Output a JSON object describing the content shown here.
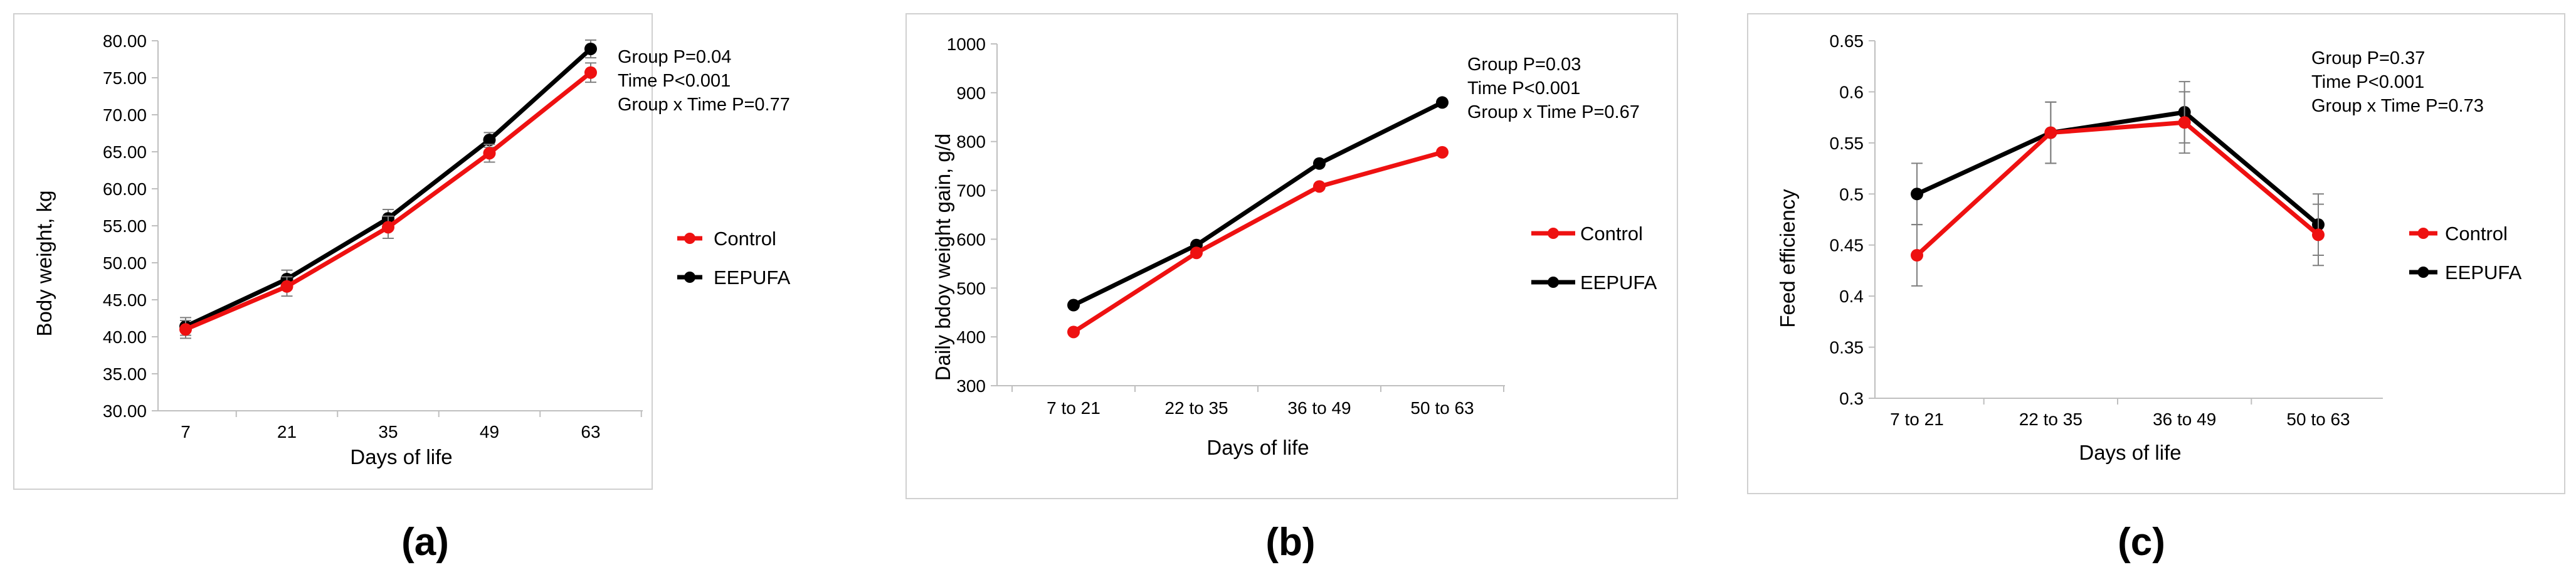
{
  "figure": {
    "panel_captions": [
      "(a)",
      "(b)",
      "(c)"
    ]
  },
  "colors": {
    "control": "#ee1111",
    "eepufa": "#000000",
    "axis": "#bfbfbf",
    "frame": "#d0d0d0",
    "error": "#7f7f7f"
  },
  "chart_data": [
    {
      "panel": "a",
      "type": "line",
      "caption": "(a)",
      "xlabel": "Days of life",
      "ylabel": "Body weight, kg",
      "categories": [
        "7",
        "21",
        "35",
        "49",
        "63"
      ],
      "ylim": [
        30.0,
        80.0
      ],
      "yticks": [
        "30.00",
        "35.00",
        "40.00",
        "45.00",
        "50.00",
        "55.00",
        "60.00",
        "65.00",
        "70.00",
        "75.00",
        "80.00"
      ],
      "ytick_values": [
        30,
        35,
        40,
        45,
        50,
        55,
        60,
        65,
        70,
        75,
        80
      ],
      "series": [
        {
          "name": "Control",
          "values": [
            41.0,
            46.8,
            54.8,
            64.8,
            75.7
          ],
          "errors": [
            1.2,
            1.3,
            1.5,
            1.2,
            1.3
          ]
        },
        {
          "name": "EEPUFA",
          "values": [
            41.4,
            47.8,
            56.0,
            66.6,
            78.9
          ],
          "errors": [
            1.2,
            1.2,
            1.2,
            1.0,
            1.2
          ]
        }
      ],
      "stats": [
        "Group P=0.04",
        "Time P<0.001",
        "Group x Time P=0.77"
      ],
      "error_bars": true
    },
    {
      "panel": "b",
      "type": "line",
      "caption": "(b)",
      "xlabel": "Days of life",
      "ylabel": "Daily bdoy weight gain, g/d",
      "categories": [
        "7 to 21",
        "22 to 35",
        "36 to 49",
        "50 to 63"
      ],
      "ylim": [
        300,
        1000
      ],
      "yticks": [
        "300",
        "400",
        "500",
        "600",
        "700",
        "800",
        "900",
        "1000"
      ],
      "ytick_values": [
        300,
        400,
        500,
        600,
        700,
        800,
        900,
        1000
      ],
      "series": [
        {
          "name": "Control",
          "values": [
            410,
            572,
            708,
            778
          ],
          "errors": [
            10,
            10,
            10,
            10
          ]
        },
        {
          "name": "EEPUFA",
          "values": [
            465,
            588,
            755,
            880
          ],
          "errors": [
            10,
            10,
            10,
            10
          ]
        }
      ],
      "stats": [
        "Group P=0.03",
        "Time P<0.001",
        "Group x Time P=0.67"
      ],
      "error_bars": false
    },
    {
      "panel": "c",
      "type": "line",
      "caption": "(c)",
      "xlabel": "Days of life",
      "ylabel": "Feed efficiency",
      "categories": [
        "7 to 21",
        "22 to 35",
        "36 to 49",
        "50 to 63"
      ],
      "ylim": [
        0.3,
        0.65
      ],
      "yticks": [
        "0.3",
        "0.35",
        "0.4",
        "0.45",
        "0.5",
        "0.55",
        "0.6",
        "0.65"
      ],
      "ytick_values": [
        0.3,
        0.35,
        0.4,
        0.45,
        0.5,
        0.55,
        0.6,
        0.65
      ],
      "series": [
        {
          "name": "Control",
          "values": [
            0.44,
            0.56,
            0.57,
            0.46
          ],
          "errors": [
            0.03,
            0.03,
            0.03,
            0.03
          ]
        },
        {
          "name": "EEPUFA",
          "values": [
            0.5,
            0.56,
            0.58,
            0.47
          ],
          "errors": [
            0.03,
            0.03,
            0.03,
            0.03
          ]
        }
      ],
      "stats": [
        "Group P=0.37",
        "Time P<0.001",
        "Group x Time P=0.73"
      ],
      "error_bars": true
    }
  ]
}
